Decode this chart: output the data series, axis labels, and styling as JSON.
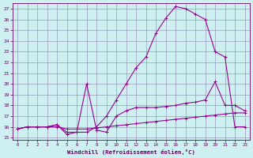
{
  "xlabel": "Windchill (Refroidissement éolien,°C)",
  "background_color": "#cff0f0",
  "grid_color": "#9999bb",
  "line_color": "#990099",
  "text_color": "#660066",
  "xlim": [
    -0.5,
    23.5
  ],
  "ylim": [
    14.8,
    27.5
  ],
  "yticks": [
    15,
    16,
    17,
    18,
    19,
    20,
    21,
    22,
    23,
    24,
    25,
    26,
    27
  ],
  "xticks": [
    0,
    1,
    2,
    3,
    4,
    5,
    6,
    7,
    8,
    9,
    10,
    11,
    12,
    13,
    14,
    15,
    16,
    17,
    18,
    19,
    20,
    21,
    22,
    23
  ],
  "curve_big_x": [
    0,
    1,
    2,
    3,
    4,
    5,
    6,
    7,
    8,
    9,
    10,
    11,
    12,
    13,
    14,
    15,
    16,
    17,
    18,
    19,
    20,
    21,
    22,
    23
  ],
  "curve_big_y": [
    15.8,
    16.0,
    16.0,
    16.0,
    16.2,
    15.5,
    15.5,
    15.5,
    16.0,
    17.0,
    18.5,
    20.0,
    21.5,
    22.5,
    24.7,
    26.1,
    27.2,
    27.0,
    26.5,
    26.0,
    23.0,
    22.5,
    16.0,
    16.0
  ],
  "curve_mid_x": [
    0,
    1,
    2,
    3,
    4,
    5,
    6,
    7,
    8,
    9,
    10,
    11,
    12,
    13,
    14,
    15,
    16,
    17,
    18,
    19,
    20,
    21,
    22,
    23
  ],
  "curve_mid_y": [
    15.8,
    16.0,
    16.0,
    16.0,
    16.2,
    15.3,
    15.5,
    20.0,
    15.7,
    15.5,
    17.0,
    17.5,
    17.8,
    17.8,
    17.8,
    17.9,
    18.0,
    18.2,
    18.3,
    18.5,
    20.2,
    18.0,
    18.0,
    17.5
  ],
  "curve_flat_x": [
    0,
    1,
    2,
    3,
    4,
    5,
    6,
    7,
    8,
    9,
    10,
    11,
    12,
    13,
    14,
    15,
    16,
    17,
    18,
    19,
    20,
    21,
    22,
    23
  ],
  "curve_flat_y": [
    15.8,
    16.0,
    16.0,
    16.0,
    16.0,
    15.8,
    15.8,
    15.8,
    15.9,
    16.0,
    16.1,
    16.2,
    16.3,
    16.4,
    16.5,
    16.6,
    16.7,
    16.8,
    16.9,
    17.0,
    17.1,
    17.2,
    17.3,
    17.3
  ]
}
